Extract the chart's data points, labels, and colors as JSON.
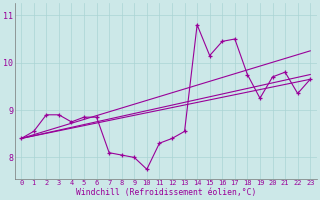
{
  "bg_color": "#cce8e8",
  "line_color": "#990099",
  "grid_color": "#aad4d4",
  "xlabel": "Windchill (Refroidissement éolien,°C)",
  "ylabel_ticks": [
    8,
    9,
    10,
    11
  ],
  "xticks": [
    0,
    1,
    2,
    3,
    4,
    5,
    6,
    7,
    8,
    9,
    10,
    11,
    12,
    13,
    14,
    15,
    16,
    17,
    18,
    19,
    20,
    21,
    22,
    23
  ],
  "xlim": [
    -0.5,
    23.5
  ],
  "ylim": [
    7.55,
    11.25
  ],
  "main": [
    8.4,
    8.55,
    8.9,
    8.9,
    8.75,
    8.85,
    8.85,
    8.1,
    8.05,
    8.0,
    7.75,
    8.3,
    8.4,
    8.55,
    10.8,
    10.15,
    10.45,
    10.5,
    9.75,
    9.25,
    9.7,
    9.8,
    9.35,
    9.65
  ],
  "trend1_x": [
    0,
    23
  ],
  "trend1_y": [
    8.4,
    9.65
  ],
  "trend2_x": [
    0,
    23
  ],
  "trend2_y": [
    8.4,
    9.75
  ],
  "trend3_x": [
    0,
    23
  ],
  "trend3_y": [
    8.4,
    10.25
  ]
}
